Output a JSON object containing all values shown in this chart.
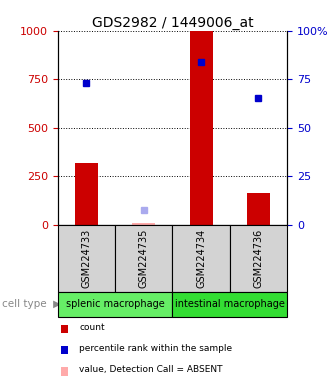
{
  "title": "GDS2982 / 1449006_at",
  "samples": [
    "GSM224733",
    "GSM224735",
    "GSM224734",
    "GSM224736"
  ],
  "counts": [
    320,
    10,
    1000,
    165
  ],
  "percentile_ranks": [
    730,
    null,
    840,
    655
  ],
  "percentile_ranks_absent": [
    null,
    75,
    null,
    null
  ],
  "absent_flags": [
    false,
    true,
    false,
    false
  ],
  "cell_types": [
    {
      "label": "splenic macrophage",
      "span": [
        0,
        2
      ],
      "color": "#66ee66"
    },
    {
      "label": "intestinal macrophage",
      "span": [
        2,
        4
      ],
      "color": "#33dd33"
    }
  ],
  "ylim": [
    0,
    1000
  ],
  "yticks_left": [
    0,
    250,
    500,
    750,
    1000
  ],
  "yticks_right": [
    0,
    25,
    50,
    75,
    100
  ],
  "bar_color": "#cc0000",
  "bar_color_absent": "#ffaaaa",
  "dot_color": "#0000cc",
  "dot_color_absent": "#aaaaee",
  "bg_color_sample": "#d3d3d3",
  "title_fontsize": 10,
  "axis_label_color_left": "#cc0000",
  "axis_label_color_right": "#0000cc"
}
